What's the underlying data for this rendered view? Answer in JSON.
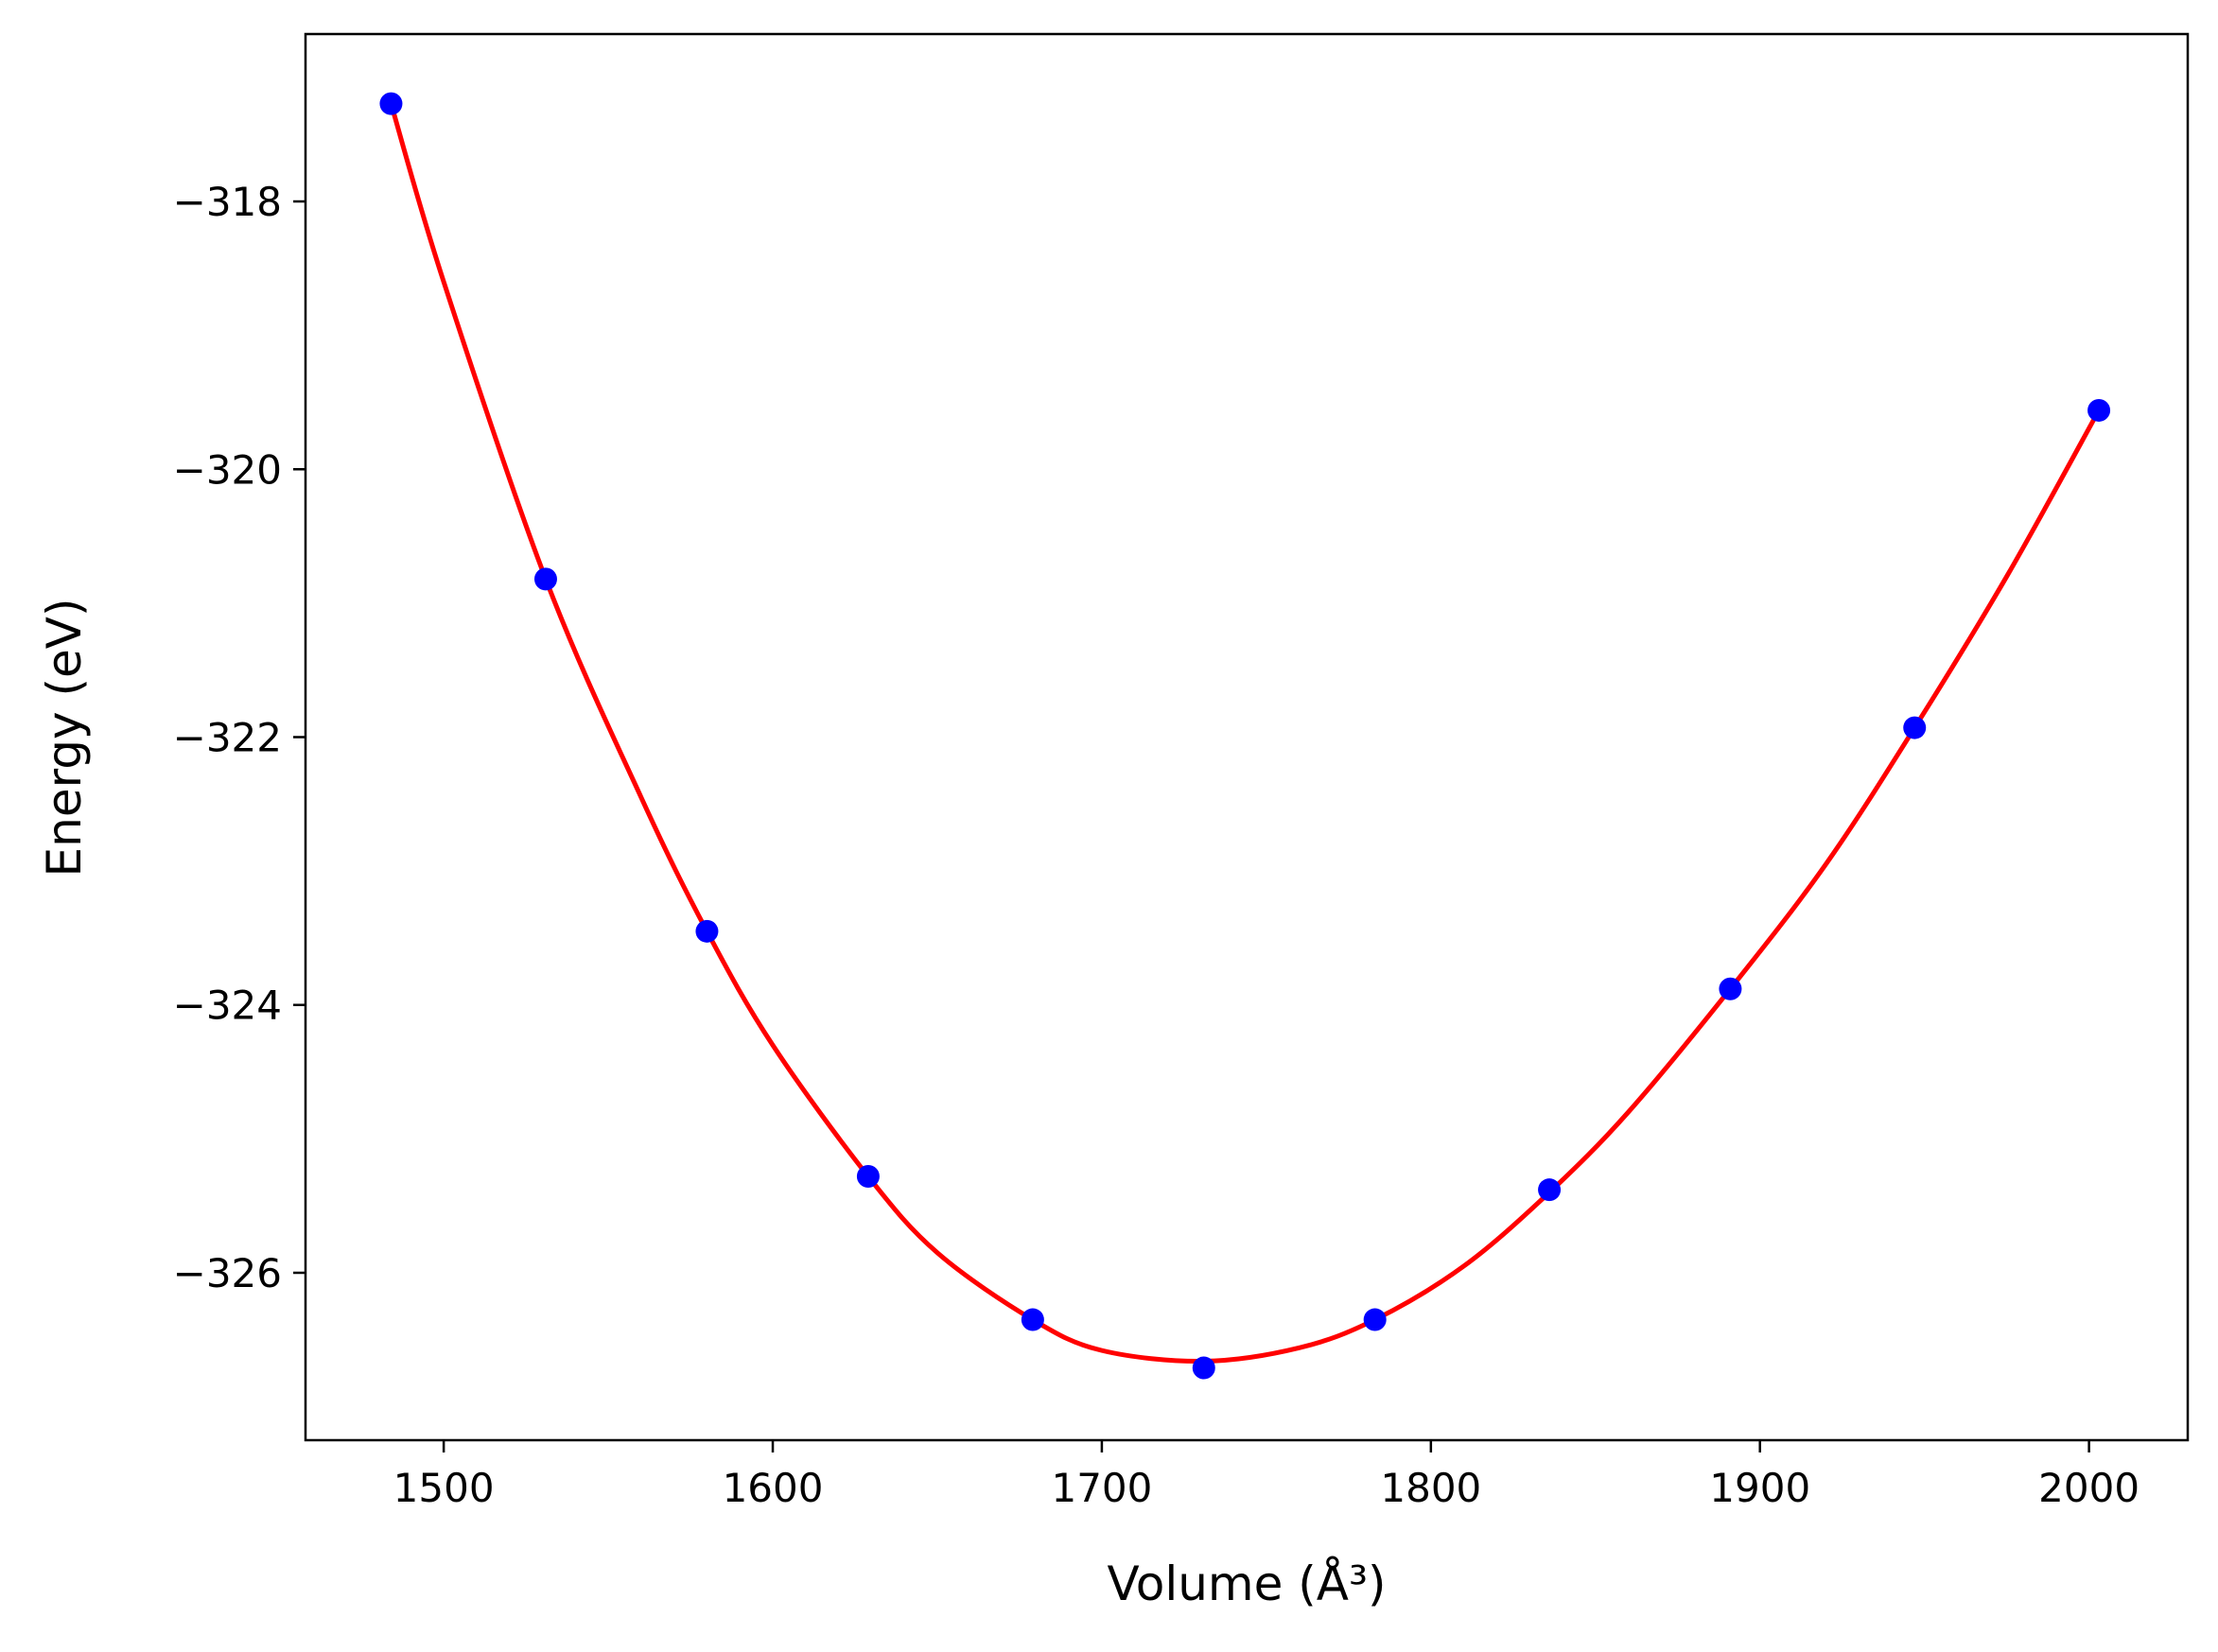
{
  "chart_data": {
    "type": "scatter",
    "xlabel": "Volume (Å³)",
    "ylabel": "Energy (eV)",
    "xlim": [
      1458,
      2030
    ],
    "ylim": [
      -327.25,
      -316.75
    ],
    "x_ticks": [
      {
        "value": 1500,
        "label": "1500"
      },
      {
        "value": 1600,
        "label": "1600"
      },
      {
        "value": 1700,
        "label": "1700"
      },
      {
        "value": 1800,
        "label": "1800"
      },
      {
        "value": 1900,
        "label": "1900"
      },
      {
        "value": 2000,
        "label": "2000"
      }
    ],
    "y_ticks": [
      {
        "value": -318,
        "label": "−318"
      },
      {
        "value": -320,
        "label": "−320"
      },
      {
        "value": -322,
        "label": "−322"
      },
      {
        "value": -324,
        "label": "−324"
      },
      {
        "value": -326,
        "label": "−326"
      }
    ],
    "grid": false,
    "series": [
      {
        "kind": "points",
        "color": "#0000ff",
        "x": [
          1484,
          1531,
          1580,
          1629,
          1679,
          1731,
          1783,
          1836,
          1891,
          1947,
          2003
        ],
        "y": [
          -317.27,
          -320.82,
          -323.45,
          -325.28,
          -326.35,
          -326.71,
          -326.35,
          -325.38,
          -323.88,
          -321.93,
          -319.56
        ]
      },
      {
        "kind": "fit",
        "color": "#ff0000",
        "x": [
          1484,
          1500,
          1531,
          1560,
          1580,
          1600,
          1629,
          1650,
          1679,
          1700,
          1731,
          1760,
          1783,
          1810,
          1836,
          1860,
          1891,
          1920,
          1947,
          1975,
          2003
        ],
        "y": [
          -317.27,
          -318.6,
          -320.82,
          -322.45,
          -323.45,
          -324.3,
          -325.28,
          -325.85,
          -326.35,
          -326.58,
          -326.66,
          -326.56,
          -326.35,
          -325.95,
          -325.4,
          -324.8,
          -323.88,
          -322.95,
          -321.93,
          -320.8,
          -319.56
        ]
      }
    ]
  }
}
